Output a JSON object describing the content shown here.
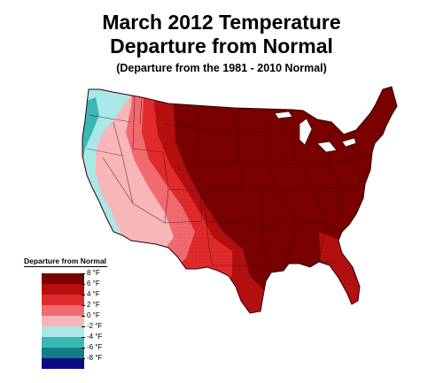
{
  "title": {
    "line1": "March 2012 Temperature",
    "line2": "Departure from Normal",
    "subtitle": "(Departure from the 1981 - 2010 Normal)"
  },
  "legend": {
    "title": "Departure from Normal",
    "bins": [
      {
        "range": "6 to 8 °F",
        "color": "#7b0000"
      },
      {
        "range": "4 to 6 °F",
        "color": "#b40f0f"
      },
      {
        "range": "2 to 4 °F",
        "color": "#e02a2c"
      },
      {
        "range": "0 to 2 °F",
        "color": "#f06a6e"
      },
      {
        "range": "-2 to 0 °F",
        "color": "#f8b6b9"
      },
      {
        "range": "-4 to -2 °F",
        "color": "#a9e8e6"
      },
      {
        "range": "-6 to -4 °F",
        "color": "#3ab7b4"
      },
      {
        "range": "-8 to -6 °F",
        "color": "#127f84"
      },
      {
        "range": "< -8 °F",
        "color": "#0b0b84"
      }
    ],
    "ticks": [
      "8 °F",
      "6 °F",
      "4 °F",
      "2 °F",
      "0 °F",
      "-2 °F",
      "-4 °F",
      "-6 °F",
      "-8 °F"
    ]
  },
  "map": {
    "region": "Contiguous United States",
    "dominant_category": "6 to 8 °F",
    "note": "Warmest anomalies over Great Plains, Midwest and East; near or below normal along West Coast"
  }
}
